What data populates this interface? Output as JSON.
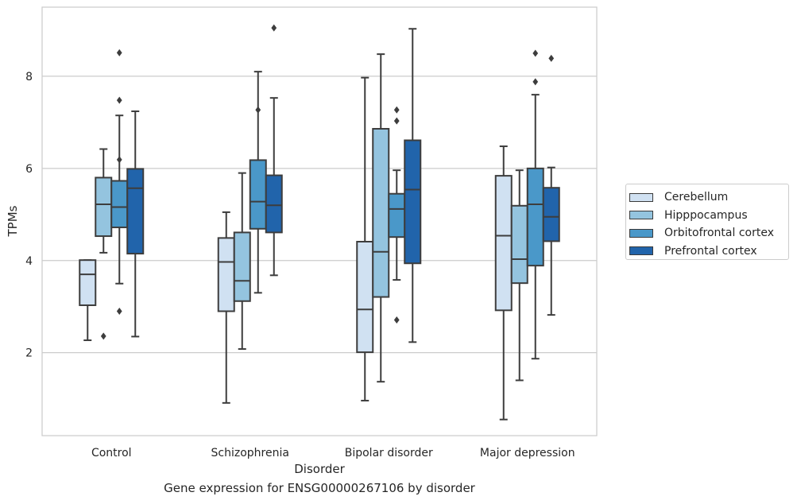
{
  "caption": "Gene expression for ENSG00000267106 by disorder",
  "chart_data": {
    "type": "boxplot",
    "xlabel": "Disorder",
    "ylabel": "TPMs",
    "ylim": [
      0.2,
      9.5
    ],
    "yticks": [
      2,
      4,
      6,
      8
    ],
    "grid": "horizontal",
    "legend_position": "right-outside",
    "categories": [
      "Control",
      "Schizophrenia",
      "Bipolar disorder",
      "Major depression"
    ],
    "series": [
      {
        "name": "Cerebellum",
        "color": "#d0e1f2",
        "boxes": [
          {
            "whislo": 2.27,
            "q1": 3.03,
            "med": 3.7,
            "q3": 4.01,
            "whishi": 4.01,
            "fliers": []
          },
          {
            "whislo": 0.91,
            "q1": 2.9,
            "med": 3.97,
            "q3": 4.49,
            "whishi": 5.05,
            "fliers": []
          },
          {
            "whislo": 0.96,
            "q1": 2.01,
            "med": 2.94,
            "q3": 4.41,
            "whishi": 7.97,
            "fliers": []
          },
          {
            "whislo": 0.55,
            "q1": 2.92,
            "med": 4.54,
            "q3": 5.84,
            "whishi": 6.48,
            "fliers": []
          }
        ]
      },
      {
        "name": "Hipppocampus",
        "color": "#94c4df",
        "boxes": [
          {
            "whislo": 4.17,
            "q1": 4.53,
            "med": 5.22,
            "q3": 5.8,
            "whishi": 6.42,
            "fliers": [
              2.36
            ]
          },
          {
            "whislo": 2.08,
            "q1": 3.12,
            "med": 3.56,
            "q3": 4.61,
            "whishi": 5.9,
            "fliers": []
          },
          {
            "whislo": 1.37,
            "q1": 3.21,
            "med": 4.19,
            "q3": 6.86,
            "whishi": 8.48,
            "fliers": []
          },
          {
            "whislo": 1.4,
            "q1": 3.51,
            "med": 4.03,
            "q3": 5.19,
            "whishi": 5.96,
            "fliers": []
          }
        ]
      },
      {
        "name": "Orbitofrontal cortex",
        "color": "#4a98c9",
        "boxes": [
          {
            "whislo": 3.5,
            "q1": 4.72,
            "med": 5.16,
            "q3": 5.73,
            "whishi": 7.15,
            "fliers": [
              8.51,
              7.48,
              6.19,
              2.9
            ]
          },
          {
            "whislo": 3.3,
            "q1": 4.69,
            "med": 5.28,
            "q3": 6.18,
            "whishi": 8.1,
            "fliers": [
              7.27
            ]
          },
          {
            "whislo": 3.58,
            "q1": 4.51,
            "med": 5.12,
            "q3": 5.45,
            "whishi": 5.96,
            "fliers": [
              7.27,
              7.03,
              2.71
            ]
          },
          {
            "whislo": 1.87,
            "q1": 3.89,
            "med": 5.22,
            "q3": 6.0,
            "whishi": 7.6,
            "fliers": [
              8.5,
              7.88
            ]
          }
        ]
      },
      {
        "name": "Prefrontal cortex",
        "color": "#2164ab",
        "boxes": [
          {
            "whislo": 2.35,
            "q1": 4.15,
            "med": 5.57,
            "q3": 5.99,
            "whishi": 7.24,
            "fliers": []
          },
          {
            "whislo": 3.68,
            "q1": 4.61,
            "med": 5.2,
            "q3": 5.85,
            "whishi": 7.53,
            "fliers": [
              9.05
            ]
          },
          {
            "whislo": 2.23,
            "q1": 3.94,
            "med": 5.54,
            "q3": 6.61,
            "whishi": 9.03,
            "fliers": []
          },
          {
            "whislo": 2.82,
            "q1": 4.42,
            "med": 4.95,
            "q3": 5.58,
            "whishi": 6.02,
            "fliers": [
              8.39
            ]
          }
        ]
      }
    ]
  }
}
